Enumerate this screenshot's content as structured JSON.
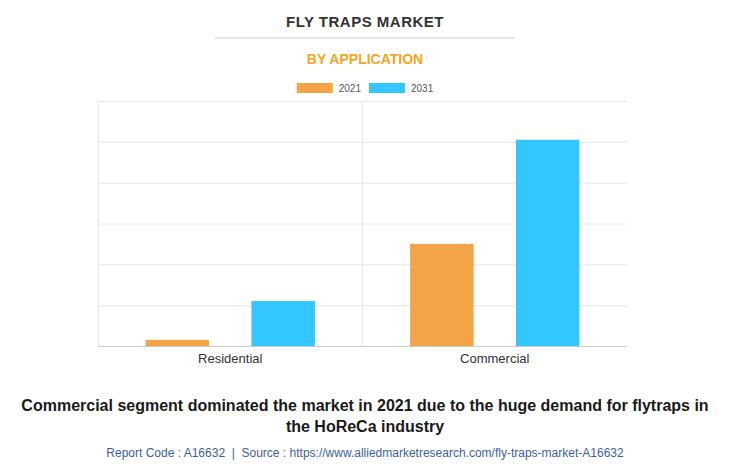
{
  "chart_data": {
    "type": "bar",
    "title": "FLY TRAPS MARKET",
    "subtitle": "BY APPLICATION",
    "categories": [
      "Residential",
      "Commercial"
    ],
    "series": [
      {
        "name": "2021",
        "color": "#f2a447",
        "values": [
          0.15,
          2.5
        ]
      },
      {
        "name": "2031",
        "color": "#33c6ff",
        "values": [
          1.1,
          5.05
        ]
      }
    ],
    "ylim": [
      0,
      6
    ],
    "yticks": [
      0,
      1,
      2,
      3,
      4,
      5,
      6
    ],
    "grid": true,
    "legend": "top",
    "tick_labels": "x",
    "annotations": [
      "Commercial segment dominated the market in 2021 due to the huge demand for flytraps in the HoReCa industry",
      "Report Code : A16632  |  Source : https://www.alliedmarketresearch.com/fly-traps-market-A16632"
    ]
  }
}
